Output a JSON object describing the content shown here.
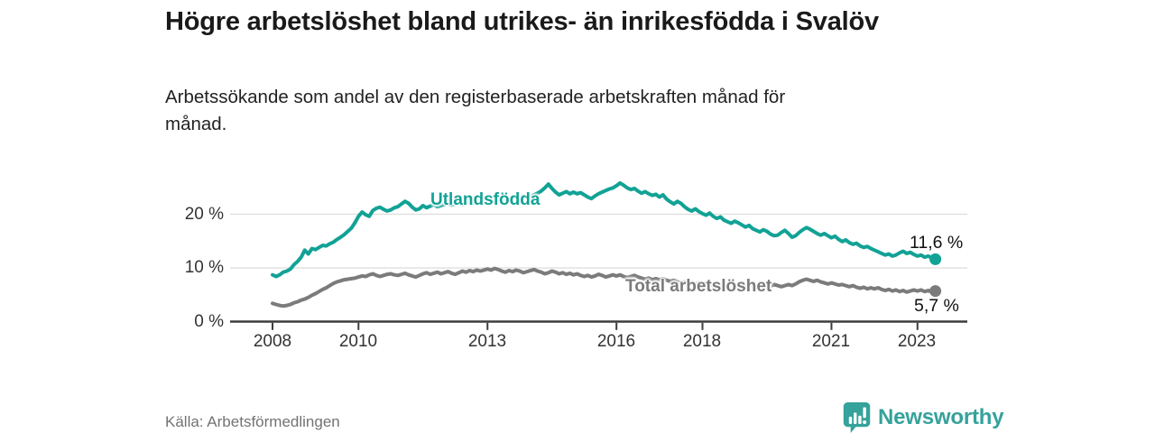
{
  "page": {
    "title": "Högre arbetslöshet bland utrikes- än inrikesfödda i Svalöv",
    "subtitle": "Arbetssökande som andel av den registerbaserade arbetskraften månad för månad.",
    "source": "Källa: Arbetsförmedlingen"
  },
  "brand": {
    "name": "Newsworthy",
    "color": "#35a29b",
    "icon": "speech-bubble-bar-chart"
  },
  "chart_data": {
    "type": "line",
    "title": "Högre arbetslöshet bland utrikes- än inrikesfödda i Svalöv",
    "subtitle": "Arbetssökande som andel av den registerbaserade arbetskraften månad för månad.",
    "source": "Källa: Arbetsförmedlingen",
    "unit": "%",
    "x_unit": "month",
    "x_start": "2008-01",
    "x_end": "2023-06",
    "xticks": [
      "2008",
      "2010",
      "2013",
      "2016",
      "2018",
      "2021",
      "2023"
    ],
    "xtick_years": [
      2008,
      2010,
      2013,
      2016,
      2018,
      2021,
      2023
    ],
    "yticks": [
      "0 %",
      "10 %",
      "20 %"
    ],
    "ytick_values": [
      0,
      10,
      20
    ],
    "ylim": [
      0,
      27
    ],
    "grid": "horizontal",
    "legend_position": "inline-labels",
    "grid_color": "#dcdcdc",
    "axis_color": "#3d3d3d",
    "series": [
      {
        "name": "Utlandsfödda",
        "color": "#12a296",
        "end_label": "11,6 %",
        "end_value": 11.6,
        "values": [
          8.7,
          8.4,
          8.7,
          9.2,
          9.4,
          9.8,
          10.6,
          11.2,
          12.0,
          13.3,
          12.6,
          13.6,
          13.4,
          13.8,
          14.2,
          14.1,
          14.5,
          14.8,
          15.3,
          15.7,
          16.2,
          16.8,
          17.4,
          18.4,
          19.6,
          20.4,
          19.9,
          19.6,
          20.7,
          21.1,
          21.3,
          20.9,
          20.6,
          20.8,
          21.2,
          21.4,
          21.9,
          22.4,
          22.0,
          21.3,
          20.8,
          21.0,
          21.6,
          21.2,
          21.5,
          21.8,
          21.4,
          21.6,
          21.8,
          22.0,
          21.7,
          21.9,
          22.2,
          21.8,
          22.1,
          22.4,
          22.0,
          22.3,
          22.6,
          22.2,
          22.5,
          22.8,
          22.4,
          22.7,
          23.0,
          22.6,
          22.9,
          23.2,
          22.8,
          23.1,
          23.4,
          23.0,
          23.3,
          23.6,
          23.9,
          24.3,
          24.9,
          25.6,
          24.8,
          24.1,
          23.6,
          23.9,
          24.2,
          23.8,
          24.1,
          23.8,
          24.0,
          23.6,
          23.2,
          22.9,
          23.4,
          23.8,
          24.1,
          24.4,
          24.7,
          24.9,
          25.3,
          25.8,
          25.4,
          24.9,
          24.6,
          24.8,
          24.3,
          23.9,
          24.2,
          23.8,
          23.5,
          23.7,
          23.2,
          23.6,
          22.8,
          22.3,
          21.9,
          22.4,
          22.0,
          21.4,
          20.9,
          20.6,
          21.0,
          20.5,
          20.1,
          19.8,
          20.2,
          19.6,
          19.2,
          19.5,
          18.9,
          18.6,
          18.3,
          18.7,
          18.4,
          18.0,
          17.6,
          17.9,
          17.3,
          17.0,
          16.7,
          17.1,
          16.8,
          16.3,
          16.0,
          16.1,
          16.6,
          17.0,
          16.4,
          15.7,
          16.0,
          16.6,
          17.1,
          17.5,
          17.2,
          16.8,
          16.4,
          16.1,
          16.4,
          16.0,
          15.6,
          15.9,
          15.3,
          14.9,
          15.2,
          14.7,
          14.4,
          14.6,
          14.1,
          13.8,
          14.0,
          13.6,
          13.3,
          13.0,
          12.7,
          12.4,
          12.6,
          12.2,
          12.4,
          12.8,
          13.1,
          12.7,
          12.9,
          12.5,
          12.2,
          12.4,
          12.0,
          12.2,
          11.9,
          11.6
        ]
      },
      {
        "name": "Total arbetslöshet",
        "color": "#7b7b7b",
        "end_label": "5,7 %",
        "end_value": 5.7,
        "values": [
          3.4,
          3.2,
          3.0,
          2.9,
          3.0,
          3.2,
          3.5,
          3.7,
          4.0,
          4.2,
          4.5,
          4.9,
          5.2,
          5.6,
          6.0,
          6.3,
          6.7,
          7.1,
          7.4,
          7.6,
          7.8,
          7.9,
          8.0,
          8.1,
          8.3,
          8.5,
          8.4,
          8.7,
          8.9,
          8.6,
          8.4,
          8.6,
          8.8,
          8.9,
          8.7,
          8.6,
          8.8,
          9.0,
          8.7,
          8.5,
          8.3,
          8.6,
          8.9,
          9.1,
          8.8,
          9.0,
          9.2,
          8.9,
          9.1,
          9.3,
          9.0,
          8.8,
          9.1,
          9.4,
          9.2,
          9.5,
          9.3,
          9.6,
          9.4,
          9.6,
          9.8,
          9.6,
          9.9,
          9.7,
          9.4,
          9.2,
          9.5,
          9.3,
          9.6,
          9.4,
          9.1,
          9.3,
          9.5,
          9.7,
          9.4,
          9.2,
          8.9,
          9.1,
          9.4,
          9.2,
          8.9,
          9.1,
          8.8,
          9.0,
          8.7,
          8.9,
          8.6,
          8.4,
          8.6,
          8.3,
          8.5,
          8.8,
          8.6,
          8.3,
          8.5,
          8.7,
          8.5,
          8.7,
          8.4,
          8.2,
          8.4,
          8.6,
          8.3,
          8.1,
          7.9,
          8.1,
          7.8,
          8.0,
          7.8,
          8.0,
          7.7,
          7.5,
          7.7,
          7.4,
          7.2,
          7.4,
          7.1,
          7.3,
          7.0,
          7.2,
          7.0,
          7.2,
          6.9,
          6.7,
          6.9,
          6.6,
          6.8,
          6.5,
          6.7,
          6.4,
          6.6,
          6.8,
          6.6,
          6.8,
          6.5,
          6.7,
          6.4,
          6.6,
          6.8,
          6.6,
          6.9,
          6.7,
          6.5,
          6.7,
          6.9,
          6.7,
          7.0,
          7.4,
          7.7,
          7.9,
          7.7,
          7.5,
          7.7,
          7.4,
          7.2,
          7.0,
          7.2,
          7.0,
          6.8,
          6.9,
          6.7,
          6.5,
          6.7,
          6.4,
          6.2,
          6.4,
          6.1,
          6.3,
          6.1,
          6.3,
          6.0,
          5.8,
          6.0,
          5.7,
          5.9,
          5.6,
          5.8,
          5.5,
          5.7,
          5.9,
          5.7,
          5.9,
          5.6,
          5.8,
          5.5,
          5.7
        ]
      }
    ]
  }
}
